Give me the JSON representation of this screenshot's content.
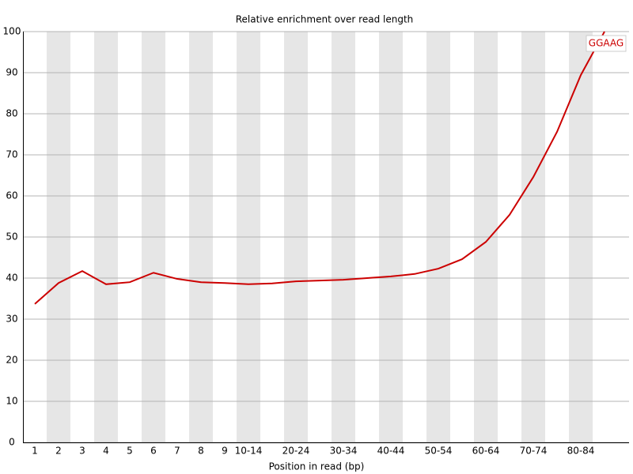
{
  "chart_data": {
    "type": "line",
    "title": "Relative enrichment over read length",
    "x_label": "Position in read (bp)",
    "categories": [
      "1",
      "2",
      "3",
      "4",
      "5",
      "6",
      "7",
      "8",
      "9",
      "10-14",
      null,
      "20-24",
      null,
      "30-34",
      null,
      "40-44",
      null,
      "50-54",
      null,
      "60-64",
      null,
      "70-74",
      null,
      "80-84",
      null
    ],
    "series": [
      {
        "name": "GGAAG",
        "color": "#cc0000",
        "values": [
          33.7,
          38.8,
          41.7,
          38.5,
          39.0,
          41.3,
          39.8,
          39.0,
          38.8,
          38.5,
          38.7,
          39.2,
          39.4,
          39.6,
          40.0,
          40.4,
          41.0,
          42.3,
          44.6,
          48.8,
          55.4,
          64.6,
          75.6,
          89.4,
          100
        ]
      }
    ],
    "ylim": [
      0,
      100
    ],
    "yticks": [
      0,
      10,
      20,
      30,
      40,
      50,
      60,
      70,
      80,
      90,
      100
    ],
    "grid": true
  }
}
